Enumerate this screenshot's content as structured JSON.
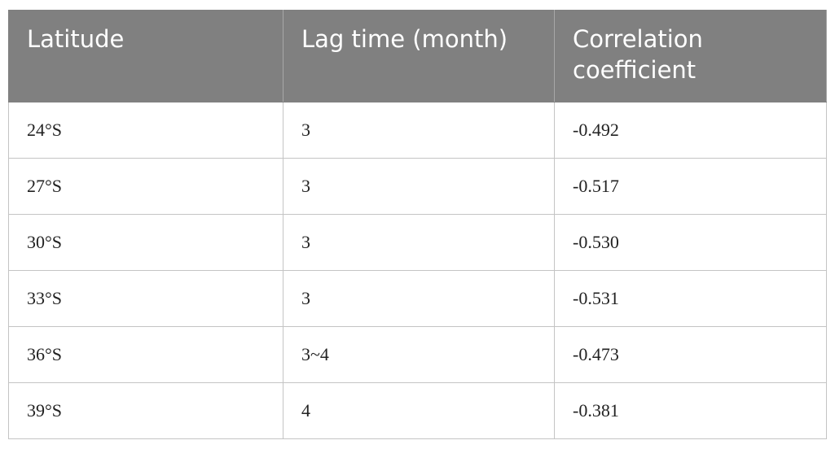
{
  "table": {
    "header": [
      "Latitude",
      "Lag time (month)",
      "Correlation coefficient"
    ],
    "rows": [
      [
        "24°S",
        "3",
        "-0.492"
      ],
      [
        "27°S",
        "3",
        "-0.517"
      ],
      [
        "30°S",
        "3",
        "-0.530"
      ],
      [
        "33°S",
        "3",
        "-0.531"
      ],
      [
        "36°S",
        "3~4",
        "-0.473"
      ],
      [
        "39°S",
        "4",
        "-0.381"
      ]
    ]
  }
}
